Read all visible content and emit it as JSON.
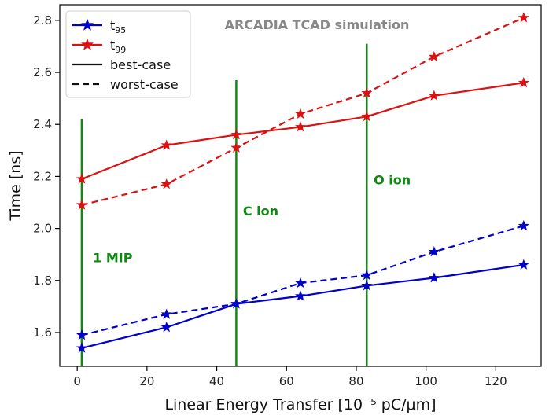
{
  "chart_data": {
    "type": "line",
    "title": "ARCADIA TCAD simulation",
    "xlabel": "Linear Energy Transfer [10⁻⁵ pC/μm]",
    "ylabel": "Time [ns]",
    "xlim": [
      -5,
      133
    ],
    "ylim": [
      1.47,
      2.86
    ],
    "xticks": [
      0,
      20,
      40,
      60,
      80,
      100,
      120
    ],
    "yticks": [
      1.6,
      1.8,
      2.0,
      2.2,
      2.4,
      2.6,
      2.8
    ],
    "xtick_labels": [
      "0",
      "20",
      "40",
      "60",
      "80",
      "100",
      "120"
    ],
    "ytick_labels": [
      "1.6",
      "1.8",
      "2.0",
      "2.2",
      "2.4",
      "2.6",
      "2.8"
    ],
    "grid": false,
    "legend_position": "top-left",
    "x": [
      1.3,
      25.6,
      45.6,
      64.0,
      83.0,
      102.3,
      128.0
    ],
    "series": [
      {
        "name": "t95 best-case",
        "color": "#0000cc",
        "dash": "solid",
        "values": [
          1.54,
          1.62,
          1.71,
          1.74,
          1.78,
          1.81,
          1.86
        ]
      },
      {
        "name": "t95 worst-case",
        "color": "#0000cc",
        "dash": "dashed",
        "values": [
          1.59,
          1.67,
          1.71,
          1.79,
          1.82,
          1.91,
          2.01
        ]
      },
      {
        "name": "t99 best-case",
        "color": "#dd1111",
        "dash": "solid",
        "values": [
          2.19,
          2.32,
          2.36,
          2.39,
          2.43,
          2.51,
          2.56
        ]
      },
      {
        "name": "t99 worst-case",
        "color": "#dd1111",
        "dash": "dashed",
        "values": [
          2.09,
          2.17,
          2.31,
          2.44,
          2.52,
          2.66,
          2.81
        ]
      }
    ],
    "markers": [
      {
        "label": "1 MIP",
        "x": 1.3,
        "y_top": 2.42,
        "label_x": 4.5,
        "label_y": 1.87
      },
      {
        "label": "C ion",
        "x": 45.6,
        "y_top": 2.57,
        "label_x": 47.5,
        "label_y": 2.05
      },
      {
        "label": "O ion",
        "x": 83.0,
        "y_top": 2.71,
        "label_x": 85.0,
        "label_y": 2.17
      }
    ],
    "marker_color": "#118811",
    "legend": [
      {
        "main": "t",
        "sub": "95",
        "color": "#0000cc",
        "kind": "star"
      },
      {
        "main": "t",
        "sub": "99",
        "color": "#dd1111",
        "kind": "star"
      },
      {
        "main": "best-case",
        "sub": "",
        "color": "#111111",
        "kind": "solid"
      },
      {
        "main": "worst-case",
        "sub": "",
        "color": "#111111",
        "kind": "dashed"
      }
    ]
  }
}
